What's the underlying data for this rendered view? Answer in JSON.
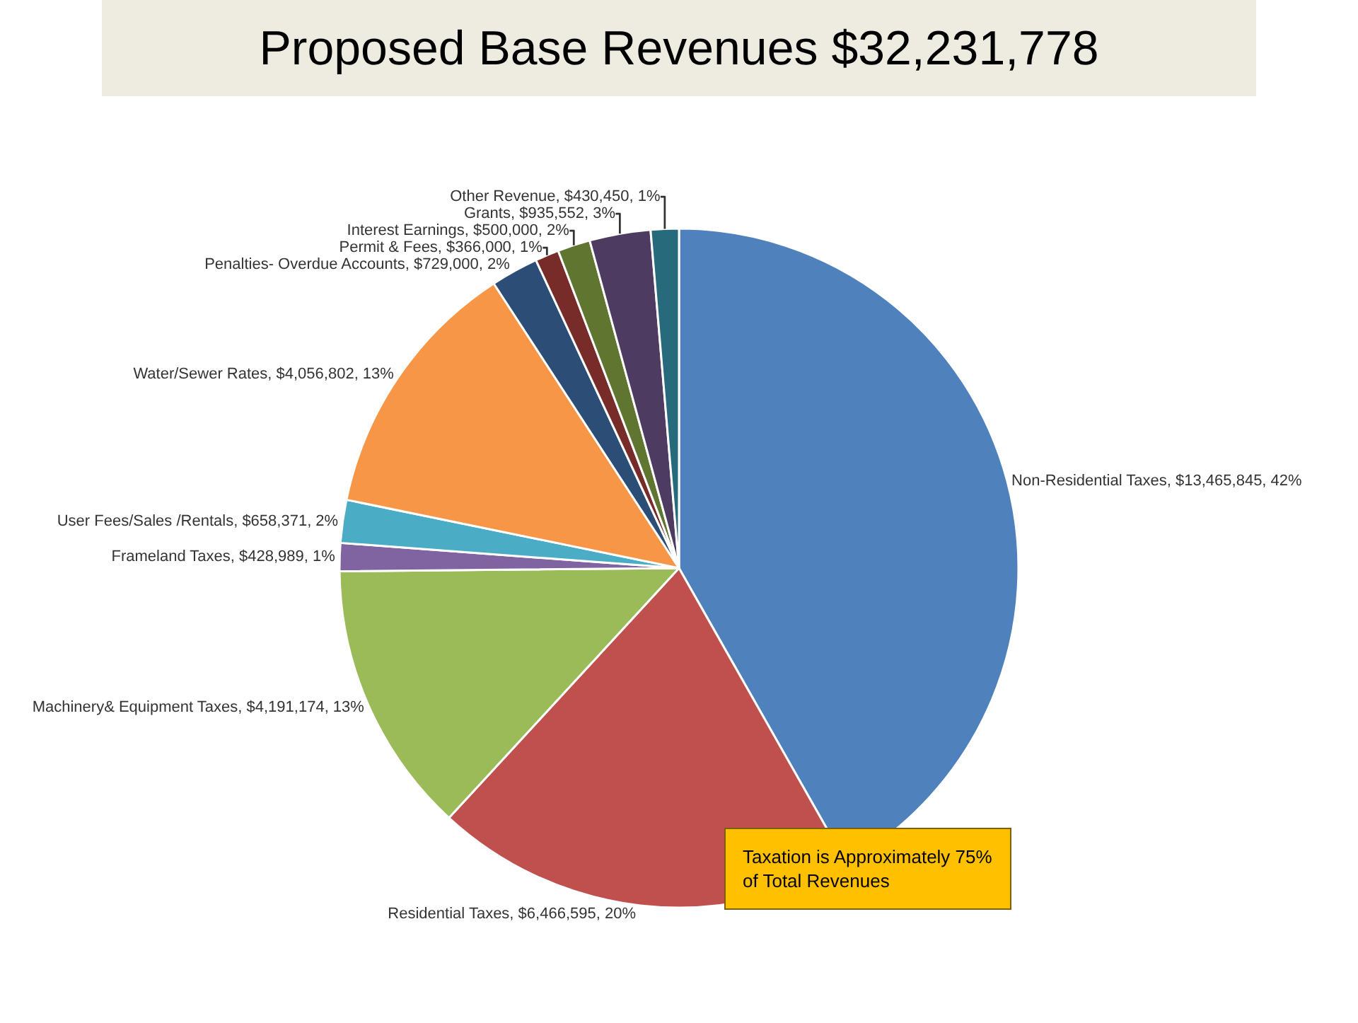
{
  "chart_data": {
    "type": "pie",
    "title": "Proposed Base Revenues $32,231,778",
    "categories": [
      "Non-Residential Taxes",
      "Residential Taxes",
      "Machinery& Equipment Taxes",
      "Frameland Taxes",
      "User Fees/Sales /Rentals",
      "Water/Sewer Rates",
      "Penalties- Overdue Accounts",
      "Permit & Fees",
      "Interest Earnings",
      "Grants",
      "Other Revenue"
    ],
    "values": [
      13465845,
      6466595,
      4191174,
      428989,
      658371,
      4056802,
      729000,
      366000,
      500000,
      935552,
      430450
    ],
    "value_labels": [
      "$13,465,845, 42%",
      "$6,466,595, 20%",
      "$4,191,174, 13%",
      "$428,989, 1%",
      "$658,371, 2%",
      "$4,056,802, 13%",
      "$729,000, 2%",
      "$366,000, 1%",
      "$500,000, 2%",
      "$935,552, 3%",
      "$430,450, 1%"
    ],
    "colors": [
      "#4f81bd",
      "#c0504d",
      "#9bbb59",
      "#8064a2",
      "#4bacc6",
      "#f79646",
      "#2c4d75",
      "#772c2a",
      "#5f7530",
      "#4d3b62",
      "#276a7c"
    ],
    "annotations": [
      "Taxation is Approximately 75% of Total Revenues"
    ],
    "legend": false
  }
}
